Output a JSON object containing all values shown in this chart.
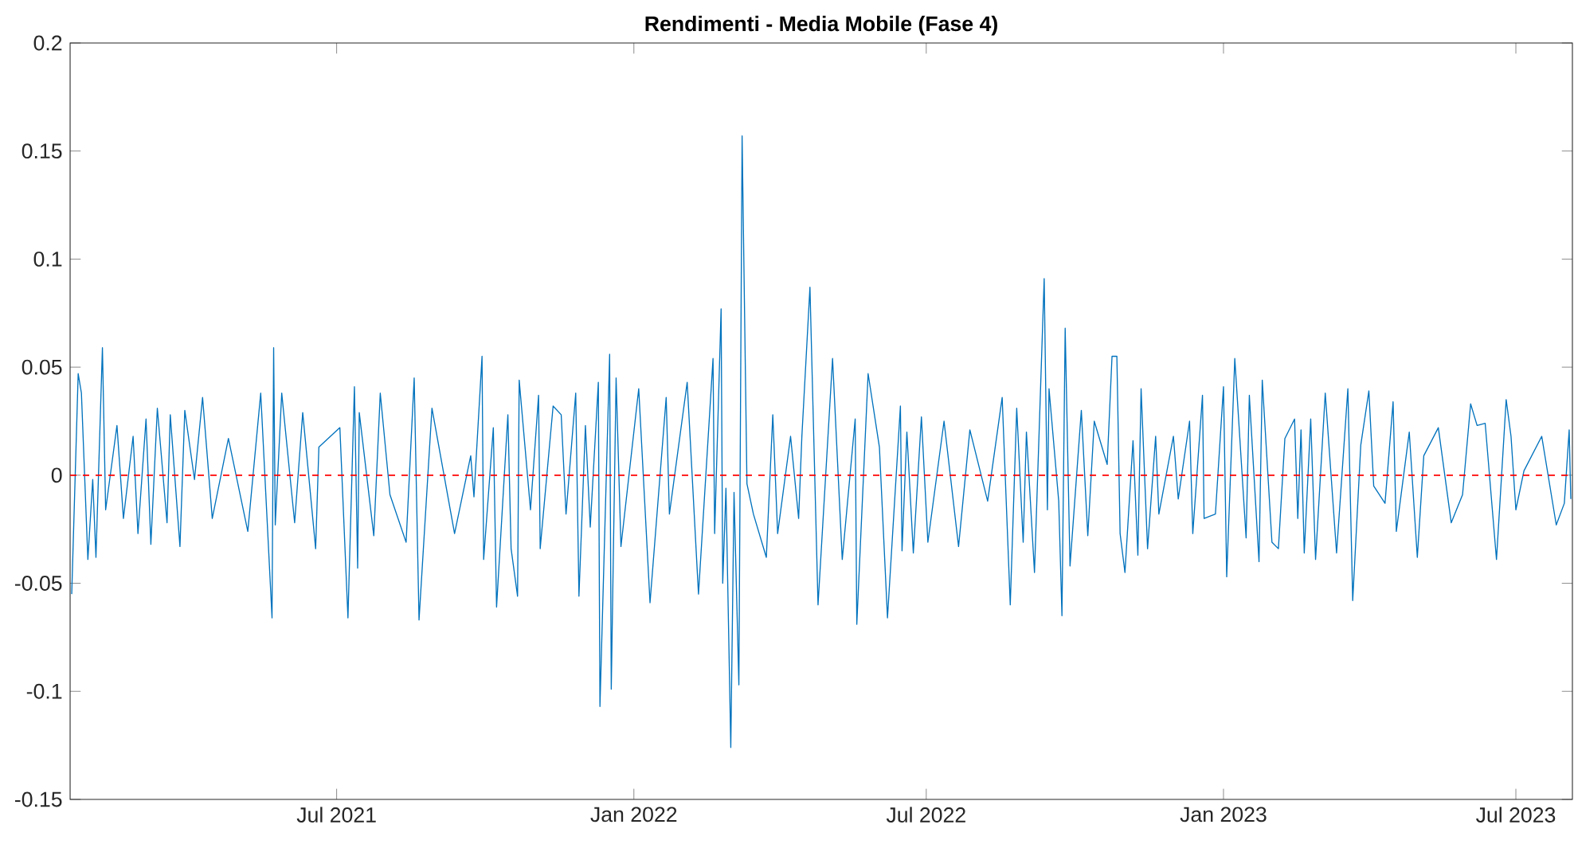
{
  "chart_data": {
    "type": "line",
    "title": "Rendimenti - Media Mobile (Fase 4)",
    "xlim": [
      "2021-01-17",
      "2023-08-05"
    ],
    "xticks": [
      {
        "value": "2021-07-01",
        "label": "Jul 2021"
      },
      {
        "value": "2022-01-01",
        "label": "Jan 2022"
      },
      {
        "value": "2022-07-01",
        "label": "Jul 2022"
      },
      {
        "value": "2023-01-01",
        "label": "Jan 2023"
      },
      {
        "value": "2023-07-01",
        "label": "Jul 2023"
      }
    ],
    "ylim": [
      -0.15,
      0.2
    ],
    "yticks": [
      -0.15,
      -0.1,
      -0.05,
      0,
      0.05,
      0.1,
      0.15,
      0.2
    ],
    "ref_lines": [
      {
        "axis": "y",
        "value": 0,
        "color": "#ff0000",
        "line_style": "dashed"
      }
    ],
    "series": [
      {
        "color": "#0072bd",
        "x": [
          "2021-01-18",
          "2021-01-22",
          "2021-01-24",
          "2021-01-28",
          "2021-01-31",
          "2021-02-02",
          "2021-02-06",
          "2021-02-08",
          "2021-02-15",
          "2021-02-19",
          "2021-02-25",
          "2021-02-28",
          "2021-03-05",
          "2021-03-08",
          "2021-03-12",
          "2021-03-18",
          "2021-03-20",
          "2021-03-26",
          "2021-03-29",
          "2021-04-04",
          "2021-04-09",
          "2021-04-15",
          "2021-04-25",
          "2021-05-07",
          "2021-05-15",
          "2021-05-22",
          "2021-05-23",
          "2021-05-24",
          "2021-05-28",
          "2021-06-05",
          "2021-06-10",
          "2021-06-18",
          "2021-06-20",
          "2021-07-03",
          "2021-07-08",
          "2021-07-12",
          "2021-07-14",
          "2021-07-15",
          "2021-07-24",
          "2021-07-28",
          "2021-08-03",
          "2021-08-13",
          "2021-08-18",
          "2021-08-21",
          "2021-08-29",
          "2021-09-12",
          "2021-09-22",
          "2021-09-24",
          "2021-09-29",
          "2021-09-30",
          "2021-10-06",
          "2021-10-08",
          "2021-10-15",
          "2021-10-17",
          "2021-10-21",
          "2021-10-22",
          "2021-10-29",
          "2021-11-03",
          "2021-11-04",
          "2021-11-12",
          "2021-11-17",
          "2021-11-20",
          "2021-11-26",
          "2021-11-28",
          "2021-12-02",
          "2021-12-05",
          "2021-12-10",
          "2021-12-11",
          "2021-12-17",
          "2021-12-18",
          "2021-12-21",
          "2021-12-24",
          "2022-01-04",
          "2022-01-11",
          "2022-01-21",
          "2022-01-23",
          "2022-02-03",
          "2022-02-10",
          "2022-02-19",
          "2022-02-20",
          "2022-02-24",
          "2022-02-25",
          "2022-02-27",
          "2022-03-02",
          "2022-03-04",
          "2022-03-07",
          "2022-03-09",
          "2022-03-12",
          "2022-03-16",
          "2022-03-24",
          "2022-03-28",
          "2022-03-31",
          "2022-04-08",
          "2022-04-13",
          "2022-04-15",
          "2022-04-20",
          "2022-04-25",
          "2022-05-04",
          "2022-05-10",
          "2022-05-18",
          "2022-05-19",
          "2022-05-26",
          "2022-06-02",
          "2022-06-07",
          "2022-06-15",
          "2022-06-16",
          "2022-06-19",
          "2022-06-23",
          "2022-06-28",
          "2022-07-02",
          "2022-07-12",
          "2022-07-21",
          "2022-07-28",
          "2022-08-08",
          "2022-08-17",
          "2022-08-22",
          "2022-08-26",
          "2022-08-30",
          "2022-09-01",
          "2022-09-06",
          "2022-09-12",
          "2022-09-14",
          "2022-09-15",
          "2022-09-21",
          "2022-09-23",
          "2022-09-25",
          "2022-09-28",
          "2022-10-05",
          "2022-10-09",
          "2022-10-13",
          "2022-10-21",
          "2022-10-24",
          "2022-10-27",
          "2022-10-29",
          "2022-11-01",
          "2022-11-06",
          "2022-11-09",
          "2022-11-11",
          "2022-11-15",
          "2022-11-20",
          "2022-11-22",
          "2022-12-01",
          "2022-12-04",
          "2022-12-11",
          "2022-12-13",
          "2022-12-19",
          "2022-12-20",
          "2022-12-27",
          "2023-01-01",
          "2023-01-03",
          "2023-01-08",
          "2023-01-15",
          "2023-01-17",
          "2023-01-23",
          "2023-01-25",
          "2023-01-31",
          "2023-02-04",
          "2023-02-08",
          "2023-02-14",
          "2023-02-16",
          "2023-02-18",
          "2023-02-20",
          "2023-02-24",
          "2023-02-27",
          "2023-03-05",
          "2023-03-12",
          "2023-03-19",
          "2023-03-22",
          "2023-03-27",
          "2023-04-01",
          "2023-04-04",
          "2023-04-11",
          "2023-04-16",
          "2023-04-18",
          "2023-04-26",
          "2023-05-01",
          "2023-05-05",
          "2023-05-14",
          "2023-05-22",
          "2023-05-29",
          "2023-06-03",
          "2023-06-07",
          "2023-06-12",
          "2023-06-19",
          "2023-06-25",
          "2023-06-28",
          "2023-07-01",
          "2023-07-06",
          "2023-07-17",
          "2023-07-26",
          "2023-07-31",
          "2023-08-03",
          "2023-08-04"
        ],
        "values": [
          -0.055,
          0.047,
          0.038,
          -0.039,
          -0.002,
          -0.038,
          0.059,
          -0.016,
          0.023,
          -0.02,
          0.018,
          -0.027,
          0.026,
          -0.032,
          0.031,
          -0.022,
          0.028,
          -0.033,
          0.03,
          -0.002,
          0.036,
          -0.02,
          0.017,
          -0.026,
          0.038,
          -0.066,
          0.059,
          -0.023,
          0.038,
          -0.022,
          0.029,
          -0.034,
          0.013,
          0.022,
          -0.066,
          0.041,
          -0.043,
          0.029,
          -0.028,
          0.038,
          -0.009,
          -0.031,
          0.045,
          -0.067,
          0.031,
          -0.027,
          0.009,
          -0.01,
          0.055,
          -0.039,
          0.022,
          -0.061,
          0.028,
          -0.034,
          -0.056,
          0.044,
          -0.016,
          0.037,
          -0.034,
          0.032,
          0.028,
          -0.018,
          0.038,
          -0.056,
          0.023,
          -0.024,
          0.043,
          -0.107,
          0.056,
          -0.099,
          0.045,
          -0.033,
          0.04,
          -0.059,
          0.036,
          -0.018,
          0.043,
          -0.055,
          0.054,
          -0.027,
          0.077,
          -0.05,
          -0.006,
          -0.126,
          -0.008,
          -0.097,
          0.157,
          -0.004,
          -0.018,
          -0.038,
          0.028,
          -0.027,
          0.018,
          -0.02,
          0.018,
          0.087,
          -0.06,
          0.054,
          -0.039,
          0.026,
          -0.069,
          0.047,
          0.013,
          -0.066,
          0.032,
          -0.035,
          0.02,
          -0.036,
          0.027,
          -0.031,
          0.025,
          -0.033,
          0.021,
          -0.012,
          0.036,
          -0.06,
          0.031,
          -0.031,
          0.02,
          -0.045,
          0.091,
          -0.016,
          0.04,
          -0.012,
          -0.065,
          0.068,
          -0.042,
          0.03,
          -0.028,
          0.025,
          0.005,
          0.055,
          0.055,
          -0.027,
          -0.045,
          0.016,
          -0.037,
          0.04,
          -0.034,
          0.018,
          -0.018,
          0.018,
          -0.011,
          0.025,
          -0.027,
          0.037,
          -0.02,
          -0.018,
          0.041,
          -0.047,
          0.054,
          -0.029,
          0.037,
          -0.04,
          0.044,
          -0.031,
          -0.034,
          0.017,
          0.026,
          -0.02,
          0.021,
          -0.036,
          0.026,
          -0.039,
          0.038,
          -0.036,
          0.04,
          -0.058,
          0.014,
          0.039,
          -0.005,
          -0.013,
          0.034,
          -0.026,
          0.02,
          -0.038,
          0.009,
          0.022,
          -0.022,
          -0.009,
          0.033,
          0.023,
          0.024,
          -0.039,
          0.035,
          0.018,
          -0.016,
          0.002,
          0.018,
          -0.023,
          -0.013,
          0.021,
          -0.011
        ]
      }
    ]
  }
}
